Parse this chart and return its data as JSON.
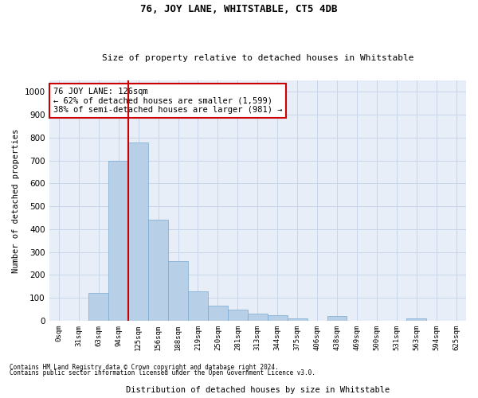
{
  "title": "76, JOY LANE, WHITSTABLE, CT5 4DB",
  "subtitle": "Size of property relative to detached houses in Whitstable",
  "xlabel": "Distribution of detached houses by size in Whitstable",
  "ylabel": "Number of detached properties",
  "footnote1": "Contains HM Land Registry data © Crown copyright and database right 2024.",
  "footnote2": "Contains public sector information licensed under the Open Government Licence v3.0.",
  "bar_labels": [
    "0sqm",
    "31sqm",
    "63sqm",
    "94sqm",
    "125sqm",
    "156sqm",
    "188sqm",
    "219sqm",
    "250sqm",
    "281sqm",
    "313sqm",
    "344sqm",
    "375sqm",
    "406sqm",
    "438sqm",
    "469sqm",
    "500sqm",
    "531sqm",
    "563sqm",
    "594sqm",
    "625sqm"
  ],
  "bar_values": [
    0,
    0,
    120,
    700,
    780,
    440,
    260,
    130,
    65,
    50,
    30,
    25,
    10,
    0,
    20,
    0,
    0,
    0,
    10,
    0,
    0
  ],
  "bar_color": "#b8cfe8",
  "bar_edge_color": "#7aaad0",
  "grid_color": "#c8d4e8",
  "background_color": "#e8eef8",
  "vline_color": "#cc0000",
  "annotation_text": "76 JOY LANE: 126sqm\n← 62% of detached houses are smaller (1,599)\n38% of semi-detached houses are larger (981) →",
  "annotation_box_color": "#ffffff",
  "annotation_box_edge_color": "#cc0000",
  "ylim": [
    0,
    1050
  ],
  "yticks": [
    0,
    100,
    200,
    300,
    400,
    500,
    600,
    700,
    800,
    900,
    1000
  ],
  "vline_position": 3.5
}
